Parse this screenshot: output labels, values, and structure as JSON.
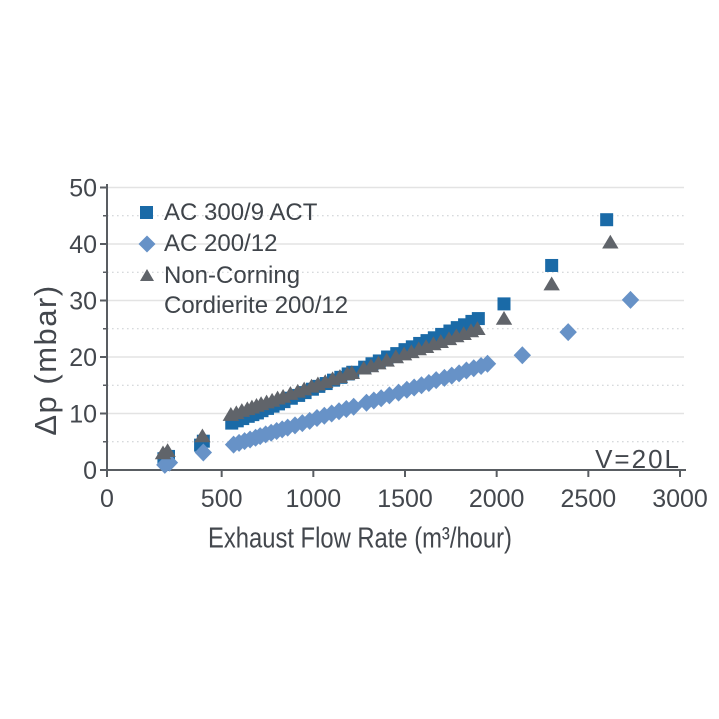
{
  "chart_data": {
    "type": "scatter",
    "title": "",
    "xlabel": "Exhaust Flow Rate (m³/hour)",
    "ylabel": "Δp (mbar)",
    "annotation": "V=20L",
    "xlim": [
      0,
      3000
    ],
    "ylim": [
      0,
      50
    ],
    "x_ticks": [
      0,
      500,
      1000,
      1500,
      2000,
      2500,
      3000
    ],
    "y_ticks": [
      0,
      10,
      20,
      30,
      40,
      50
    ],
    "y_minor_step": 5,
    "grid": {
      "major_horizontal": "solid",
      "minor_horizontal": "dotted",
      "vertical": "none"
    },
    "legend_position": "top-left-inside",
    "series": [
      {
        "name": "AC 300/9 ACT",
        "legend_lines": [
          "AC 300/9 ACT"
        ],
        "marker": "square",
        "color": "#1a6aa7",
        "points": [
          [
            185,
            2.0
          ],
          [
            210,
            2.4
          ],
          [
            385,
            4.4
          ],
          [
            400,
            5.1
          ],
          [
            555,
            8.3
          ],
          [
            585,
            8.7
          ],
          [
            615,
            9.1
          ],
          [
            645,
            9.5
          ],
          [
            670,
            9.8
          ],
          [
            695,
            10.1
          ],
          [
            720,
            10.5
          ],
          [
            750,
            10.9
          ],
          [
            780,
            11.3
          ],
          [
            810,
            11.7
          ],
          [
            840,
            12.1
          ],
          [
            880,
            12.7
          ],
          [
            920,
            13.2
          ],
          [
            955,
            13.7
          ],
          [
            995,
            14.3
          ],
          [
            1030,
            14.8
          ],
          [
            1070,
            15.3
          ],
          [
            1110,
            15.9
          ],
          [
            1150,
            16.4
          ],
          [
            1190,
            17.0
          ],
          [
            1215,
            17.3
          ],
          [
            1280,
            18.2
          ],
          [
            1320,
            18.8
          ],
          [
            1360,
            19.3
          ],
          [
            1405,
            20.0
          ],
          [
            1455,
            20.6
          ],
          [
            1500,
            21.3
          ],
          [
            1540,
            21.8
          ],
          [
            1580,
            22.4
          ],
          [
            1620,
            22.9
          ],
          [
            1660,
            23.4
          ],
          [
            1700,
            24.0
          ],
          [
            1745,
            24.6
          ],
          [
            1785,
            25.2
          ],
          [
            1825,
            25.7
          ],
          [
            1865,
            26.3
          ],
          [
            1900,
            26.8
          ],
          [
            2040,
            29.4
          ],
          [
            2300,
            36.2
          ],
          [
            2600,
            44.3
          ]
        ]
      },
      {
        "name": "AC 200/12",
        "legend_lines": [
          "AC 200/12"
        ],
        "marker": "diamond",
        "color": "#6792c7",
        "points": [
          [
            190,
            0.9
          ],
          [
            215,
            1.3
          ],
          [
            400,
            3.1
          ],
          [
            565,
            4.5
          ],
          [
            595,
            4.8
          ],
          [
            625,
            5.1
          ],
          [
            655,
            5.4
          ],
          [
            685,
            5.7
          ],
          [
            710,
            6.0
          ],
          [
            740,
            6.3
          ],
          [
            770,
            6.6
          ],
          [
            800,
            6.9
          ],
          [
            830,
            7.2
          ],
          [
            860,
            7.5
          ],
          [
            900,
            7.9
          ],
          [
            940,
            8.3
          ],
          [
            980,
            8.7
          ],
          [
            1020,
            9.2
          ],
          [
            1060,
            9.6
          ],
          [
            1100,
            10.0
          ],
          [
            1140,
            10.4
          ],
          [
            1180,
            10.8
          ],
          [
            1220,
            11.2
          ],
          [
            1290,
            11.9
          ],
          [
            1330,
            12.3
          ],
          [
            1370,
            12.7
          ],
          [
            1415,
            13.2
          ],
          [
            1465,
            13.7
          ],
          [
            1510,
            14.2
          ],
          [
            1550,
            14.6
          ],
          [
            1590,
            15.0
          ],
          [
            1630,
            15.4
          ],
          [
            1670,
            15.9
          ],
          [
            1715,
            16.3
          ],
          [
            1755,
            16.7
          ],
          [
            1795,
            17.1
          ],
          [
            1835,
            17.6
          ],
          [
            1875,
            18.0
          ],
          [
            1915,
            18.4
          ],
          [
            1950,
            18.8
          ],
          [
            2140,
            20.3
          ],
          [
            2390,
            24.4
          ],
          [
            2730,
            30.1
          ]
        ]
      },
      {
        "name": "Non-Corning Cordierite 200/12",
        "legend_lines": [
          "Non-Corning",
          "Cordierite 200/12"
        ],
        "marker": "triangle",
        "color": "#60646a",
        "points": [
          [
            180,
            3.0
          ],
          [
            205,
            3.4
          ],
          [
            395,
            6.0
          ],
          [
            550,
            9.8
          ],
          [
            580,
            10.1
          ],
          [
            610,
            10.5
          ],
          [
            640,
            10.8
          ],
          [
            665,
            11.1
          ],
          [
            690,
            11.4
          ],
          [
            715,
            11.7
          ],
          [
            745,
            12.0
          ],
          [
            775,
            12.3
          ],
          [
            805,
            12.7
          ],
          [
            835,
            13.0
          ],
          [
            875,
            13.5
          ],
          [
            915,
            13.9
          ],
          [
            950,
            14.3
          ],
          [
            990,
            14.8
          ],
          [
            1025,
            15.2
          ],
          [
            1065,
            15.6
          ],
          [
            1105,
            16.1
          ],
          [
            1145,
            16.5
          ],
          [
            1185,
            17.0
          ],
          [
            1210,
            17.2
          ],
          [
            1275,
            18.0
          ],
          [
            1315,
            18.4
          ],
          [
            1355,
            18.9
          ],
          [
            1400,
            19.4
          ],
          [
            1450,
            20.0
          ],
          [
            1495,
            20.5
          ],
          [
            1535,
            20.9
          ],
          [
            1575,
            21.4
          ],
          [
            1615,
            21.8
          ],
          [
            1655,
            22.3
          ],
          [
            1695,
            22.7
          ],
          [
            1740,
            23.2
          ],
          [
            1780,
            23.7
          ],
          [
            1820,
            24.1
          ],
          [
            1860,
            24.6
          ],
          [
            1895,
            25.0
          ],
          [
            2040,
            26.8
          ],
          [
            2300,
            32.9
          ],
          [
            2620,
            40.3
          ]
        ]
      }
    ]
  },
  "colors": {
    "background": "#ffffff",
    "text": "#43474d",
    "axis": "#595d62",
    "grid_major": "#e3e3e3",
    "grid_minor": "#c9cdd1",
    "series_square": "#1a6aa7",
    "series_diamond": "#6792c7",
    "series_triangle": "#60646a"
  }
}
